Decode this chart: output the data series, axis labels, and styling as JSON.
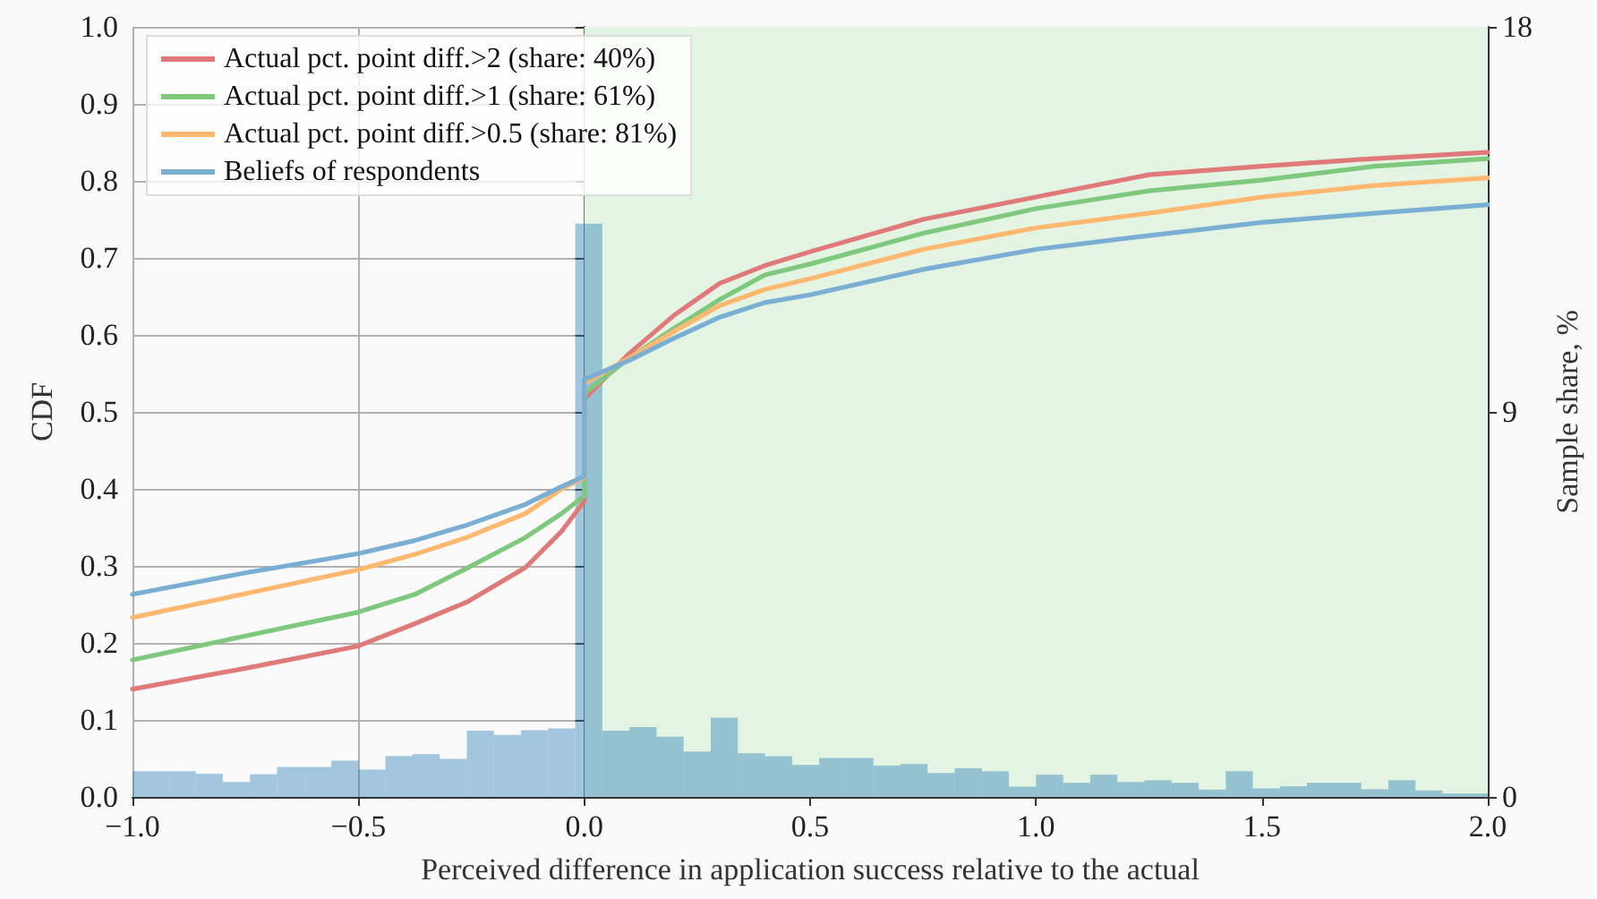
{
  "chart_data": {
    "type": "line",
    "xlabel": "Perceived difference in application success relative to the actual",
    "ylabel": "CDF",
    "y2label": "Sample share, %",
    "xlim": [
      -1,
      2
    ],
    "xticks": [
      {
        "value": -1,
        "label": "−1.0"
      },
      {
        "value": -0.5,
        "label": "−0.5"
      },
      {
        "value": 0,
        "label": "0.0"
      },
      {
        "value": 0.5,
        "label": "0.5"
      },
      {
        "value": 1,
        "label": "1.0"
      },
      {
        "value": 1.5,
        "label": "1.5"
      },
      {
        "value": 2,
        "label": "2.0"
      }
    ],
    "ylim": [
      0,
      1
    ],
    "yticks": [
      {
        "value": 0,
        "label": "0.0"
      },
      {
        "value": 0.1,
        "label": "0.1"
      },
      {
        "value": 0.2,
        "label": "0.2"
      },
      {
        "value": 0.3,
        "label": "0.3"
      },
      {
        "value": 0.4,
        "label": "0.4"
      },
      {
        "value": 0.5,
        "label": "0.5"
      },
      {
        "value": 0.6,
        "label": "0.6"
      },
      {
        "value": 0.7,
        "label": "0.7"
      },
      {
        "value": 0.8,
        "label": "0.8"
      },
      {
        "value": 0.9,
        "label": "0.9"
      },
      {
        "value": 1,
        "label": "1.0"
      }
    ],
    "y2lim": [
      0,
      18
    ],
    "y2ticks": [
      0,
      9,
      18
    ],
    "grid": true,
    "legend": "top left",
    "bands": [
      {
        "axis": "x",
        "from": 0,
        "to": 2,
        "color": "#e3f4e3"
      }
    ],
    "series": [
      {
        "name": "Actual pct. point diff.>2 (share: 40%)",
        "color": "#e07a7a",
        "x": [
          -1,
          -0.75,
          -0.5,
          -0.375,
          -0.26,
          -0.13,
          -0.05,
          0,
          0,
          0.1,
          0.2,
          0.3,
          0.4,
          0.5,
          0.75,
          1,
          1.25,
          1.5,
          1.75,
          2
        ],
        "values": [
          0.14,
          0.167,
          0.196,
          0.225,
          0.253,
          0.298,
          0.345,
          0.384,
          0.517,
          0.576,
          0.626,
          0.667,
          0.69,
          0.708,
          0.75,
          0.779,
          0.808,
          0.819,
          0.829,
          0.837
        ]
      },
      {
        "name": "Actual pct. point diff.>1 (share: 61%)",
        "color": "#7fc97f",
        "x": [
          -1,
          -0.75,
          -0.5,
          -0.375,
          -0.26,
          -0.13,
          -0.05,
          0,
          0,
          0.1,
          0.2,
          0.3,
          0.4,
          0.5,
          0.75,
          1,
          1.25,
          1.5,
          1.75,
          2
        ],
        "values": [
          0.178,
          0.209,
          0.24,
          0.263,
          0.297,
          0.337,
          0.368,
          0.391,
          0.524,
          0.57,
          0.609,
          0.646,
          0.678,
          0.692,
          0.732,
          0.764,
          0.787,
          0.801,
          0.819,
          0.829
        ]
      },
      {
        "name": "Actual pct. point diff.>0.5 (share: 81%)",
        "color": "#ffb870",
        "x": [
          -1,
          -0.75,
          -0.5,
          -0.375,
          -0.26,
          -0.13,
          -0.05,
          0,
          0,
          0.1,
          0.2,
          0.3,
          0.4,
          0.5,
          0.75,
          1,
          1.25,
          1.5,
          1.75,
          2
        ],
        "values": [
          0.233,
          0.264,
          0.295,
          0.315,
          0.337,
          0.368,
          0.4,
          0.415,
          0.537,
          0.57,
          0.605,
          0.638,
          0.659,
          0.673,
          0.711,
          0.739,
          0.758,
          0.779,
          0.794,
          0.804
        ]
      },
      {
        "name": "Beliefs of respondents",
        "color": "#7aaed3",
        "x": [
          -1,
          -0.75,
          -0.5,
          -0.375,
          -0.26,
          -0.13,
          -0.05,
          0,
          0,
          0.1,
          0.2,
          0.3,
          0.4,
          0.5,
          0.75,
          1,
          1.25,
          1.5,
          1.75,
          2
        ],
        "values": [
          0.263,
          0.291,
          0.316,
          0.333,
          0.353,
          0.38,
          0.403,
          0.416,
          0.542,
          0.567,
          0.596,
          0.623,
          0.642,
          0.652,
          0.685,
          0.711,
          0.729,
          0.746,
          0.758,
          0.769
        ]
      },
      {
        "type": "histogram",
        "axis": "y2",
        "color": "#1f77b4",
        "bins": [
          -1,
          -0.98,
          -0.92,
          -0.86,
          -0.8,
          -0.74,
          -0.68,
          -0.62,
          -0.56,
          -0.5,
          -0.44,
          -0.38,
          -0.32,
          -0.26,
          -0.2,
          -0.14,
          -0.08,
          -0.02,
          0.04,
          0.1,
          0.16,
          0.22,
          0.28,
          0.34,
          0.4,
          0.46,
          0.52,
          0.58,
          0.64,
          0.7,
          0.76,
          0.82,
          0.88,
          0.94,
          1.0,
          1.06,
          1.12,
          1.18,
          1.24,
          1.3,
          1.36,
          1.42,
          1.48,
          1.54,
          1.6,
          1.66,
          1.72,
          1.78,
          1.84,
          1.9,
          1.96,
          2.0
        ],
        "values": [
          0.6,
          0.6,
          0.6,
          0.54,
          0.35,
          0.53,
          0.7,
          0.7,
          0.85,
          0.64,
          0.96,
          1.0,
          0.89,
          1.55,
          1.45,
          1.56,
          1.6,
          13.4,
          1.55,
          1.63,
          1.41,
          1.06,
          1.85,
          1.02,
          0.95,
          0.75,
          0.91,
          0.91,
          0.73,
          0.77,
          0.56,
          0.67,
          0.6,
          0.24,
          0.52,
          0.33,
          0.52,
          0.35,
          0.39,
          0.33,
          0.17,
          0.6,
          0.2,
          0.25,
          0.33,
          0.33,
          0.18,
          0.39,
          0.15,
          0.08,
          0.08
        ]
      }
    ]
  }
}
